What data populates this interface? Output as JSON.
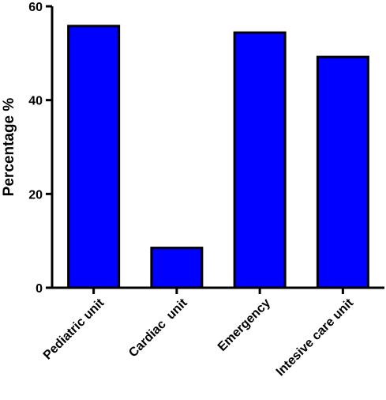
{
  "chart_data": {
    "type": "bar",
    "title": "",
    "xlabel": "",
    "ylabel": "Percentage %",
    "categories": [
      "Pediatric unit",
      "Cardiac  unit",
      "Emergency",
      "Intesive care unit"
    ],
    "values": [
      55.8,
      8.5,
      54.4,
      49.2
    ],
    "ylim": [
      0,
      60
    ],
    "yticks": [
      0,
      20,
      40,
      60
    ],
    "grid": false,
    "legend": "none",
    "bar_color": "#0000ff",
    "bar_edge_color": "#000000"
  }
}
